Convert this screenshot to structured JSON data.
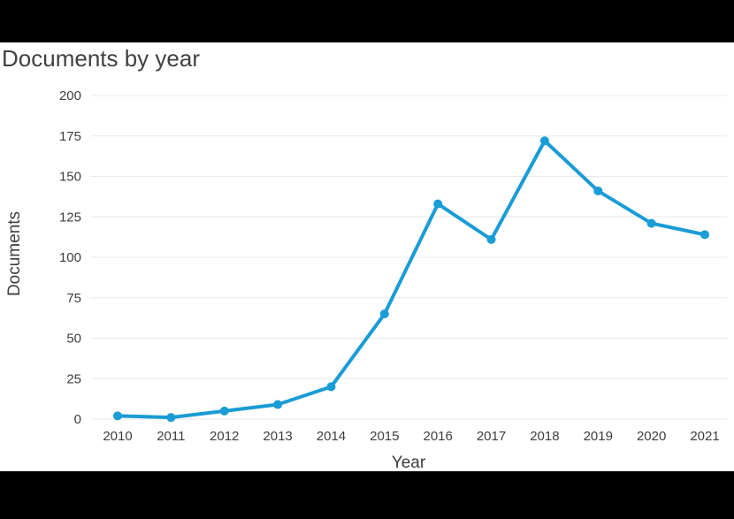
{
  "page": {
    "title": "Documents by year"
  },
  "chart_data": {
    "type": "line",
    "title": "Documents by year",
    "xlabel": "Year",
    "ylabel": "Documents",
    "categories": [
      "2010",
      "2011",
      "2012",
      "2013",
      "2014",
      "2015",
      "2016",
      "2017",
      "2018",
      "2019",
      "2020",
      "2021"
    ],
    "series": [
      {
        "name": "Documents",
        "values": [
          2,
          1,
          5,
          9,
          20,
          65,
          133,
          111,
          172,
          141,
          121,
          114
        ]
      }
    ],
    "ylim": [
      0,
      200
    ],
    "yticks": [
      0,
      25,
      50,
      75,
      100,
      125,
      150,
      175,
      200
    ],
    "grid": true,
    "legend": "none",
    "colors": {
      "line": "#1a9cd6",
      "marker": "#1a9cd6",
      "grid": "#e8e8e8",
      "tick_text": "#3d3d3d",
      "axis_title_text": "#3d3d3d",
      "title_text": "#414141",
      "background": "#ffffff",
      "letterbox": "#000000"
    }
  }
}
